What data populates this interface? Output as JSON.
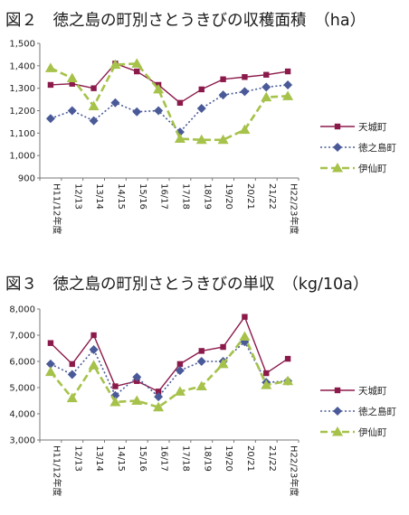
{
  "charts": [
    {
      "title": "図２　徳之島の町別さとうきびの収穫面積　（ha）",
      "type": "line",
      "categories": [
        "H11/12年度",
        "12/13",
        "13/14",
        "14/15",
        "15/16",
        "16/17",
        "17/18",
        "18/19",
        "19/20",
        "20/21",
        "21/22",
        "H22/23年度"
      ],
      "ylim": [
        900,
        1500
      ],
      "ytick_labels": [
        "900",
        "1,000",
        "1,100",
        "1,200",
        "1,300",
        "1,400",
        "1,500"
      ],
      "yticks": [
        900,
        1000,
        1100,
        1200,
        1300,
        1400,
        1500
      ],
      "grid": false,
      "legend_position": "right",
      "series": [
        {
          "name": "天城町",
          "color": "#8b1a4a",
          "marker": "square",
          "dash": "solid",
          "values": [
            1315,
            1320,
            1300,
            1410,
            1375,
            1315,
            1235,
            1295,
            1340,
            1350,
            1360,
            1375
          ]
        },
        {
          "name": "徳之島町",
          "color": "#4a5a98",
          "marker": "diamond",
          "dash": "dotted",
          "values": [
            1165,
            1200,
            1155,
            1235,
            1195,
            1200,
            1105,
            1210,
            1270,
            1285,
            1305,
            1315
          ]
        },
        {
          "name": "伊仙町",
          "color": "#a6c24a",
          "marker": "triangle",
          "dash": "dashed",
          "values": [
            1390,
            1345,
            1220,
            1405,
            1410,
            1295,
            1075,
            1070,
            1070,
            1115,
            1260,
            1265
          ]
        }
      ]
    },
    {
      "title": "図３　徳之島の町別さとうきびの単収　（kg/10a）",
      "type": "line",
      "categories": [
        "H11/12年度",
        "12/13",
        "13/14",
        "14/15",
        "15/16",
        "16/17",
        "17/18",
        "18/19",
        "19/20",
        "20/21",
        "21/22",
        "H22/23年度"
      ],
      "ylim": [
        3000,
        8000
      ],
      "ytick_labels": [
        "3,000",
        "4,000",
        "5,000",
        "6,000",
        "7,000",
        "8,000"
      ],
      "yticks": [
        3000,
        4000,
        5000,
        6000,
        7000,
        8000
      ],
      "grid": false,
      "legend_position": "right",
      "series": [
        {
          "name": "天城町",
          "color": "#8b1a4a",
          "marker": "square",
          "dash": "solid",
          "values": [
            6700,
            5900,
            7000,
            5050,
            5250,
            4850,
            5900,
            6400,
            6550,
            7700,
            5550,
            6100
          ]
        },
        {
          "name": "徳之島町",
          "color": "#4a5a98",
          "marker": "diamond",
          "dash": "dotted",
          "values": [
            5900,
            5500,
            6450,
            4700,
            5400,
            4650,
            5650,
            6000,
            6000,
            6750,
            5200,
            5250
          ]
        },
        {
          "name": "伊仙町",
          "color": "#a6c24a",
          "marker": "triangle",
          "dash": "dashed",
          "values": [
            5600,
            4600,
            5850,
            4450,
            4500,
            4250,
            4850,
            5050,
            5900,
            6950,
            5100,
            5250
          ]
        }
      ]
    }
  ]
}
